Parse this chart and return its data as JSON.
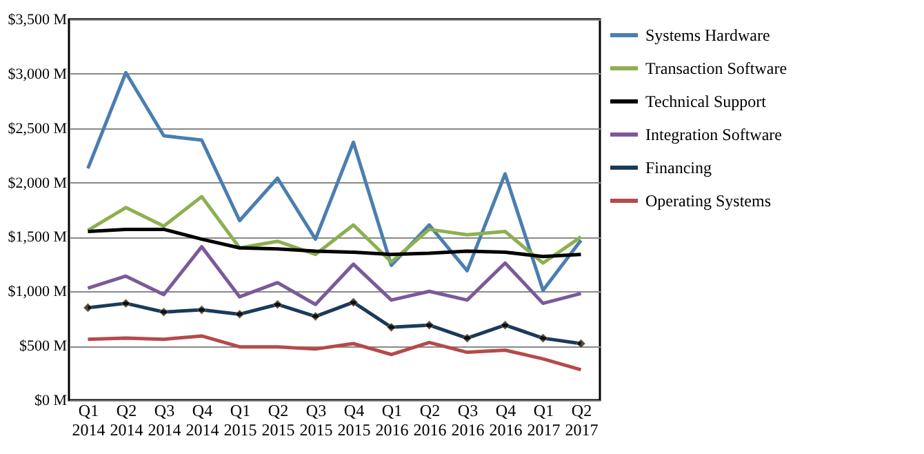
{
  "chart_data": {
    "type": "line",
    "categories": [
      "Q1 2014",
      "Q2 2014",
      "Q3 2014",
      "Q4 2014",
      "Q1 2015",
      "Q2 2015",
      "Q3 2015",
      "Q4 2015",
      "Q1 2016",
      "Q2 2016",
      "Q3 2016",
      "Q4 2016",
      "Q1 2017",
      "Q2 2017"
    ],
    "series": [
      {
        "name": "Systems Hardware",
        "color": "#4a7eb0",
        "values": [
          2130,
          3010,
          2430,
          2390,
          1650,
          2040,
          1480,
          2370,
          1240,
          1610,
          1190,
          2080,
          1010,
          1470
        ]
      },
      {
        "name": "Transaction Software",
        "color": "#8cb050",
        "values": [
          1560,
          1770,
          1600,
          1870,
          1400,
          1460,
          1340,
          1610,
          1270,
          1570,
          1520,
          1550,
          1260,
          1500
        ]
      },
      {
        "name": "Technical Support",
        "color": "#000000",
        "values": [
          1550,
          1570,
          1570,
          1480,
          1400,
          1390,
          1370,
          1360,
          1340,
          1350,
          1370,
          1360,
          1320,
          1340
        ]
      },
      {
        "name": "Integration Software",
        "color": "#7a5a9a",
        "values": [
          1030,
          1140,
          970,
          1410,
          950,
          1080,
          880,
          1250,
          920,
          1000,
          920,
          1260,
          890,
          980
        ]
      },
      {
        "name": "Financing",
        "color": "#1a3a5a",
        "marker": "diamond",
        "values": [
          850,
          890,
          810,
          830,
          790,
          880,
          770,
          900,
          670,
          690,
          570,
          690,
          570,
          520
        ]
      },
      {
        "name": "Operating Systems",
        "color": "#b54a4a",
        "values": [
          560,
          570,
          560,
          590,
          490,
          490,
          470,
          520,
          420,
          530,
          440,
          460,
          380,
          280
        ]
      }
    ],
    "ylim": [
      0,
      3500
    ],
    "yticks": [
      {
        "value": 0,
        "label": "$0 M"
      },
      {
        "value": 500,
        "label": "$500 M"
      },
      {
        "value": 1000,
        "label": "$1,000 M"
      },
      {
        "value": 1500,
        "label": "$1,500 M"
      },
      {
        "value": 2000,
        "label": "$2,000 M"
      },
      {
        "value": 2500,
        "label": "$2,500 M"
      },
      {
        "value": 3000,
        "label": "$3,000 M"
      },
      {
        "value": 3500,
        "label": "$3,500 M"
      }
    ],
    "grid": "y",
    "legend": "right",
    "line_style": "solid"
  }
}
